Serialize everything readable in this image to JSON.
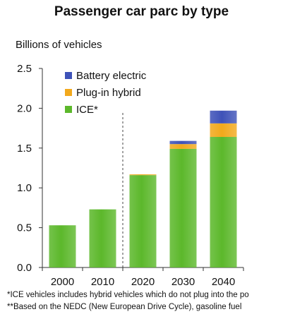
{
  "chart_data": {
    "type": "bar",
    "stacked": true,
    "title": "Passenger car parc by type",
    "ylabel": "Billions of vehicles",
    "xlabel": "",
    "categories": [
      "2000",
      "2010",
      "2020",
      "2030",
      "2040"
    ],
    "ylim": [
      0,
      2.5
    ],
    "yticks": [
      "0.0",
      "0.5",
      "1.0",
      "1.5",
      "2.0",
      "2.5"
    ],
    "ytick_values": [
      0,
      0.5,
      1.0,
      1.5,
      2.0,
      2.5
    ],
    "legend_position": "top-left",
    "legend_order": [
      "Battery electric",
      "Plug-in hybrid",
      "ICE*"
    ],
    "series": [
      {
        "name": "ICE*",
        "color": "#5cb82b",
        "values": [
          0.53,
          0.73,
          1.16,
          1.49,
          1.64
        ]
      },
      {
        "name": "Plug-in hybrid",
        "color": "#f2a91c",
        "values": [
          0,
          0,
          0.01,
          0.06,
          0.17
        ]
      },
      {
        "name": "Battery electric",
        "color": "#3e52b8",
        "values": [
          0,
          0,
          0,
          0.04,
          0.16
        ]
      }
    ],
    "divider_between": [
      "2010",
      "2020"
    ],
    "footnotes": [
      "*ICE vehicles includes hybrid vehicles which do not plug into the po",
      "**Based on the NEDC (New European Drive Cycle), gasoline fuel"
    ]
  }
}
